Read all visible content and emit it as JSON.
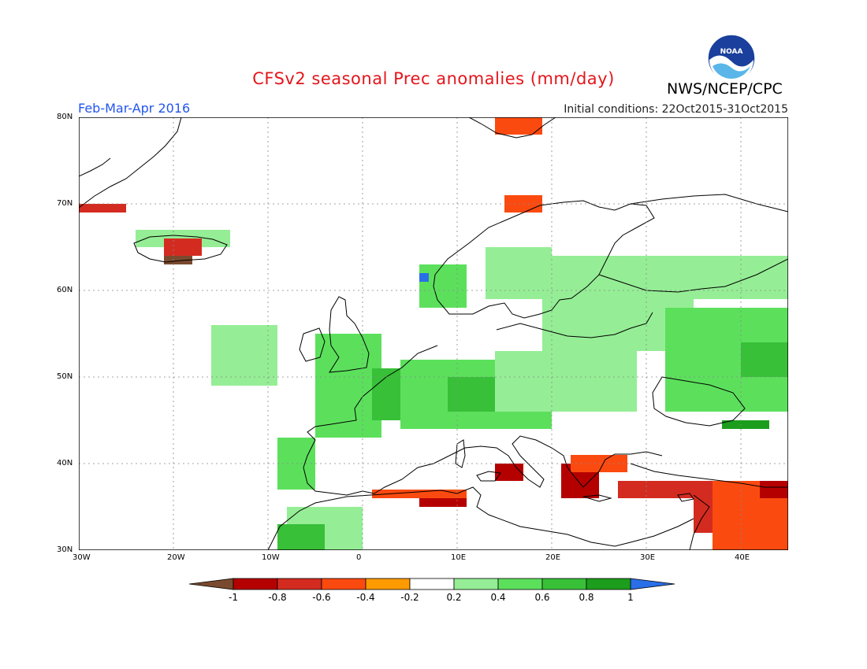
{
  "title": "CFSv2 seasonal Prec anomalies (mm/day)",
  "organization": "NWS/NCEP/CPC",
  "logo_text": "NOAA",
  "season": "Feb-Mar-Apr 2016",
  "initial_conditions": "Initial conditions: 22Oct2015-31Oct2015",
  "lat_labels": [
    "80N",
    "70N",
    "60N",
    "50N",
    "40N",
    "30N"
  ],
  "lon_labels": [
    "30W",
    "20W",
    "10W",
    "0",
    "10E",
    "20E",
    "30E",
    "40E"
  ],
  "colorbar": {
    "ticks": [
      "-1",
      "-0.8",
      "-0.6",
      "-0.4",
      "-0.2",
      "0.2",
      "0.4",
      "0.6",
      "0.8",
      "1"
    ],
    "colors": [
      "#7a4a2e",
      "#b50000",
      "#d42b20",
      "#fb4a10",
      "#ff9a00",
      "#ffffff",
      "#95ee95",
      "#5ce05c",
      "#38c038",
      "#1c9e1c",
      "#2a6ee8"
    ]
  },
  "anomaly_regions": [
    {
      "lon": [
        -16,
        -9
      ],
      "lat": [
        49,
        56
      ],
      "value": 0.3
    },
    {
      "lon": [
        -5,
        2
      ],
      "lat": [
        43,
        55
      ],
      "value": 0.4
    },
    {
      "lon": [
        1,
        9
      ],
      "lat": [
        45,
        51
      ],
      "value": 0.6
    },
    {
      "lon": [
        4,
        20
      ],
      "lat": [
        44,
        52
      ],
      "value": 0.4
    },
    {
      "lon": [
        9,
        15
      ],
      "lat": [
        46,
        50
      ],
      "value": 0.6
    },
    {
      "lon": [
        14,
        29
      ],
      "lat": [
        46,
        53
      ],
      "value": 0.3
    },
    {
      "lon": [
        19,
        35
      ],
      "lat": [
        53,
        59
      ],
      "value": 0.3
    },
    {
      "lon": [
        20,
        45
      ],
      "lat": [
        59,
        64
      ],
      "value": 0.3
    },
    {
      "lon": [
        32,
        45
      ],
      "lat": [
        46,
        58
      ],
      "value": 0.4
    },
    {
      "lon": [
        40,
        45
      ],
      "lat": [
        50,
        54
      ],
      "value": 0.6
    },
    {
      "lon": [
        38,
        43
      ],
      "lat": [
        44,
        45
      ],
      "value": 0.8
    },
    {
      "lon": [
        13,
        20
      ],
      "lat": [
        59,
        65
      ],
      "value": 0.3
    },
    {
      "lon": [
        6,
        11
      ],
      "lat": [
        58,
        63
      ],
      "value": 0.5
    },
    {
      "lon": [
        6,
        7
      ],
      "lat": [
        61,
        62
      ],
      "value": 1.0
    },
    {
      "lon": [
        -9,
        -5
      ],
      "lat": [
        37,
        43
      ],
      "value": 0.5
    },
    {
      "lon": [
        -8,
        0
      ],
      "lat": [
        30,
        35
      ],
      "value": 0.3
    },
    {
      "lon": [
        -9,
        -4
      ],
      "lat": [
        30,
        33
      ],
      "value": 0.6
    },
    {
      "lon": [
        -24,
        -14
      ],
      "lat": [
        65,
        67
      ],
      "value": 0.3
    },
    {
      "lon": [
        -31,
        -25
      ],
      "lat": [
        69,
        70
      ],
      "value": -0.7
    },
    {
      "lon": [
        -21,
        -17
      ],
      "lat": [
        64,
        66
      ],
      "value": -0.7
    },
    {
      "lon": [
        -21,
        -18
      ],
      "lat": [
        63,
        64
      ],
      "value": -1.0
    },
    {
      "lon": [
        14,
        19
      ],
      "lat": [
        78,
        80
      ],
      "value": -0.4
    },
    {
      "lon": [
        15,
        19
      ],
      "lat": [
        69,
        71
      ],
      "value": -0.4
    },
    {
      "lon": [
        14,
        17
      ],
      "lat": [
        38,
        40
      ],
      "value": -0.8
    },
    {
      "lon": [
        6,
        11
      ],
      "lat": [
        35,
        37
      ],
      "value": -0.8
    },
    {
      "lon": [
        1,
        11
      ],
      "lat": [
        36,
        37
      ],
      "value": -0.4
    },
    {
      "lon": [
        21,
        25
      ],
      "lat": [
        36,
        40
      ],
      "value": -0.8
    },
    {
      "lon": [
        22,
        28
      ],
      "lat": [
        39,
        41
      ],
      "value": -0.5
    },
    {
      "lon": [
        27,
        38
      ],
      "lat": [
        36,
        38
      ],
      "value": -0.6
    },
    {
      "lon": [
        35,
        38
      ],
      "lat": [
        32,
        36
      ],
      "value": -0.7
    },
    {
      "lon": [
        37,
        45
      ],
      "lat": [
        30,
        38
      ],
      "value": -0.4
    },
    {
      "lon": [
        42,
        45
      ],
      "lat": [
        36,
        38
      ],
      "value": -0.8
    }
  ]
}
